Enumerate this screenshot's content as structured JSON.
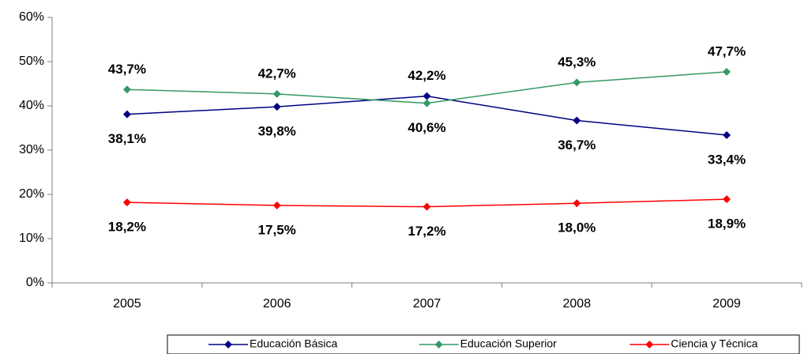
{
  "chart_data": {
    "type": "line",
    "categories": [
      "2005",
      "2006",
      "2007",
      "2008",
      "2009"
    ],
    "series": [
      {
        "name": "Educación Básica",
        "color": "#000080",
        "values": [
          38.1,
          39.8,
          42.2,
          36.7,
          33.4
        ],
        "value_labels": [
          "38,1%",
          "39,8%",
          "42,2%",
          "36,7%",
          "33,4%"
        ]
      },
      {
        "name": "Educación Superior",
        "color": "#339966",
        "values": [
          43.7,
          42.7,
          40.6,
          45.3,
          47.7
        ],
        "value_labels": [
          "43,7%",
          "42,7%",
          "40,6%",
          "45,3%",
          "47,7%"
        ]
      },
      {
        "name": "Ciencia y Técnica",
        "color": "#ff0000",
        "values": [
          18.2,
          17.5,
          17.2,
          18.0,
          18.9
        ],
        "value_labels": [
          "18,2%",
          "17,5%",
          "17,2%",
          "18,0%",
          "18,9%"
        ]
      }
    ],
    "ylim": [
      0,
      60
    ],
    "yticks": [
      {
        "value": 0,
        "label": "0%"
      },
      {
        "value": 10,
        "label": "10%"
      },
      {
        "value": 20,
        "label": "20%"
      },
      {
        "value": 30,
        "label": "30%"
      },
      {
        "value": 40,
        "label": "40%"
      },
      {
        "value": 50,
        "label": "50%"
      },
      {
        "value": 60,
        "label": "60%"
      }
    ],
    "grid": false,
    "legend": "bottom"
  }
}
